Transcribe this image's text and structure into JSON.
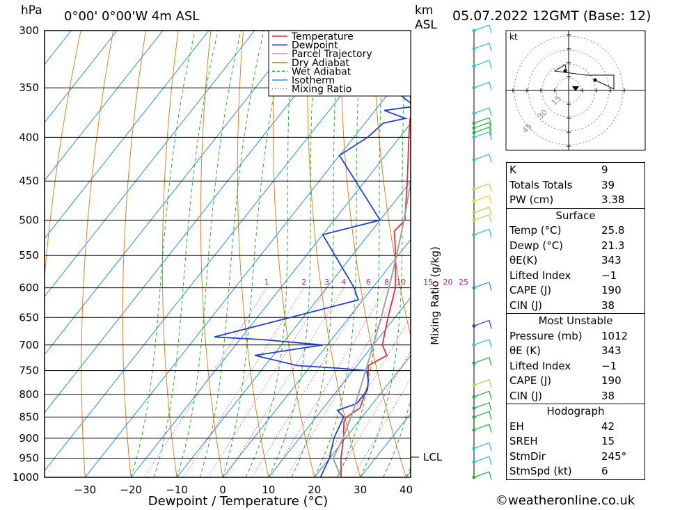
{
  "header": {
    "unit_left": "hPa",
    "location": "0°00' 0°00'W  4m  ASL",
    "unit_km": "km",
    "unit_asl": "ASL",
    "datetime": "05.07.2022  12GMT  (Base: 12)"
  },
  "legend": [
    {
      "label": "Temperature",
      "color": "#e03030",
      "style": "solid"
    },
    {
      "label": "Dewpoint",
      "color": "#2040d0",
      "style": "solid"
    },
    {
      "label": "Parcel Trajectory",
      "color": "#a0a0a0",
      "style": "solid"
    },
    {
      "label": "Dry Adiabat",
      "color": "#e08020",
      "style": "solid"
    },
    {
      "label": "Wet Adiabat",
      "color": "#20b020",
      "style": "dashed"
    },
    {
      "label": "Isotherm",
      "color": "#2090e0",
      "style": "solid"
    },
    {
      "label": "Mixing Ratio",
      "color": "#c02080",
      "style": "dotted"
    }
  ],
  "chart_data": {
    "type": "line",
    "subtype": "skew-T log-P",
    "xlabel": "Dewpoint / Temperature (°C)",
    "ylabel_left": "hPa",
    "ylabel_right": "Mixing Ratio (g/kg)",
    "x_ticks": [
      -30,
      -20,
      -10,
      0,
      10,
      20,
      30,
      40
    ],
    "pressure_ticks": [
      300,
      350,
      400,
      450,
      500,
      550,
      600,
      650,
      700,
      750,
      800,
      850,
      900,
      950,
      1000
    ],
    "mixing_ratio_labels": [
      "1",
      "2",
      "3",
      "4",
      "6",
      "8",
      "10",
      "15",
      "20",
      "25"
    ],
    "mixing_ratio_values": [
      1,
      2,
      3,
      4,
      6,
      8,
      10,
      15,
      20,
      25
    ],
    "lcl_label": "LCL",
    "lcl_pressure": 950,
    "series": [
      {
        "name": "Temperature",
        "points": [
          [
            1000,
            25.8
          ],
          [
            950,
            22.5
          ],
          [
            900,
            19.6
          ],
          [
            860,
            16.8
          ],
          [
            850,
            16.6
          ],
          [
            830,
            18.0
          ],
          [
            780,
            15.8
          ],
          [
            740,
            12.5
          ],
          [
            720,
            14.8
          ],
          [
            700,
            12.0
          ],
          [
            650,
            8.5
          ],
          [
            600,
            5.0
          ],
          [
            550,
            -0.5
          ],
          [
            515,
            -5.0
          ],
          [
            500,
            -4.6
          ],
          [
            450,
            -10.8
          ],
          [
            400,
            -18.0
          ],
          [
            380,
            -21.0
          ],
          [
            370,
            -20.8
          ],
          [
            360,
            -22.0
          ]
        ]
      },
      {
        "name": "Dewpoint",
        "points": [
          [
            1000,
            21.3
          ],
          [
            950,
            20.0
          ],
          [
            900,
            17.5
          ],
          [
            850,
            16.0
          ],
          [
            835,
            13.5
          ],
          [
            820,
            16.5
          ],
          [
            790,
            16.5
          ],
          [
            770,
            15.0
          ],
          [
            750,
            13.0
          ],
          [
            745,
            6.0
          ],
          [
            740,
            -3.0
          ],
          [
            720,
            -14.0
          ],
          [
            700,
            -1.0
          ],
          [
            690,
            -15.0
          ],
          [
            685,
            -26.0
          ],
          [
            620,
            -1.0
          ],
          [
            600,
            -4.0
          ],
          [
            520,
            -20.0
          ],
          [
            500,
            -10.0
          ],
          [
            420,
            -30.0
          ],
          [
            400,
            -27.0
          ],
          [
            385,
            -26.0
          ],
          [
            380,
            -22.0
          ],
          [
            372,
            -28.0
          ],
          [
            368,
            -22.0
          ],
          [
            355,
            -28.0
          ],
          [
            350,
            -30.0
          ],
          [
            300,
            -35.0
          ]
        ]
      },
      {
        "name": "Parcel Trajectory",
        "points": [
          [
            1000,
            25.8
          ],
          [
            950,
            20.8
          ],
          [
            900,
            19.5
          ],
          [
            850,
            17.6
          ],
          [
            800,
            15.3
          ],
          [
            750,
            12.8
          ],
          [
            700,
            10.0
          ],
          [
            650,
            7.0
          ],
          [
            600,
            3.6
          ],
          [
            550,
            -0.3
          ],
          [
            500,
            -4.8
          ],
          [
            450,
            -10.0
          ],
          [
            400,
            -16.3
          ],
          [
            360,
            -22.0
          ],
          [
            330,
            -27.5
          ],
          [
            300,
            -34.0
          ]
        ]
      }
    ]
  },
  "wind_profile": [
    {
      "p": 300,
      "color": "#30c0c0"
    },
    {
      "p": 315,
      "color": "#30c0c0"
    },
    {
      "p": 330,
      "color": "#30c0c0"
    },
    {
      "p": 350,
      "color": "#30c0c0"
    },
    {
      "p": 375,
      "color": "#30c0c0"
    },
    {
      "p": 385,
      "color": "#20b040"
    },
    {
      "p": 390,
      "color": "#20b040"
    },
    {
      "p": 395,
      "color": "#20b040"
    },
    {
      "p": 400,
      "color": "#30c0c0"
    },
    {
      "p": 425,
      "color": "#30c0c0"
    },
    {
      "p": 460,
      "color": "#a0e040"
    },
    {
      "p": 475,
      "color": "#e0e020"
    },
    {
      "p": 490,
      "color": "#a0e040"
    },
    {
      "p": 500,
      "color": "#a0e040"
    },
    {
      "p": 520,
      "color": "#30c0c0"
    },
    {
      "p": 600,
      "color": "#2090e0"
    },
    {
      "p": 665,
      "color": "#2040d0"
    },
    {
      "p": 700,
      "color": "#30c0c0"
    },
    {
      "p": 735,
      "color": "#20b040"
    },
    {
      "p": 780,
      "color": "#a0e040"
    },
    {
      "p": 805,
      "color": "#20b040"
    },
    {
      "p": 830,
      "color": "#20b040"
    },
    {
      "p": 850,
      "color": "#20b040"
    },
    {
      "p": 880,
      "color": "#20b040"
    },
    {
      "p": 925,
      "color": "#30c0c0"
    },
    {
      "p": 960,
      "color": "#30c0c0"
    },
    {
      "p": 1000,
      "color": "#20b040"
    }
  ],
  "hodograph": {
    "unit": "kt",
    "rings": [
      "15",
      "30",
      "45"
    ]
  },
  "stats": {
    "indices": [
      {
        "label": "K",
        "value": "9"
      },
      {
        "label": "Totals Totals",
        "value": "39"
      },
      {
        "label": "PW (cm)",
        "value": "3.38"
      }
    ],
    "surface": {
      "title": "Surface",
      "rows": [
        {
          "label": "Temp (°C)",
          "value": "25.8"
        },
        {
          "label": "Dewp (°C)",
          "value": "21.3"
        },
        {
          "label": "θE(K)",
          "value": "343"
        },
        {
          "label": "Lifted Index",
          "value": "−1"
        },
        {
          "label": "CAPE (J)",
          "value": "190"
        },
        {
          "label": "CIN (J)",
          "value": "38"
        }
      ]
    },
    "most_unstable": {
      "title": "Most Unstable",
      "rows": [
        {
          "label": "Pressure (mb)",
          "value": "1012"
        },
        {
          "label": "θE (K)",
          "value": "343"
        },
        {
          "label": "Lifted Index",
          "value": "−1"
        },
        {
          "label": "CAPE (J)",
          "value": "190"
        },
        {
          "label": "CIN (J)",
          "value": "38"
        }
      ]
    },
    "hodograph_stats": {
      "title": "Hodograph",
      "rows": [
        {
          "label": "EH",
          "value": "42"
        },
        {
          "label": "SREH",
          "value": "15"
        },
        {
          "label": "StmDir",
          "value": "245°"
        },
        {
          "label": "StmSpd (kt)",
          "value": "6"
        }
      ]
    }
  },
  "footer": "©weatheronline.co.uk"
}
